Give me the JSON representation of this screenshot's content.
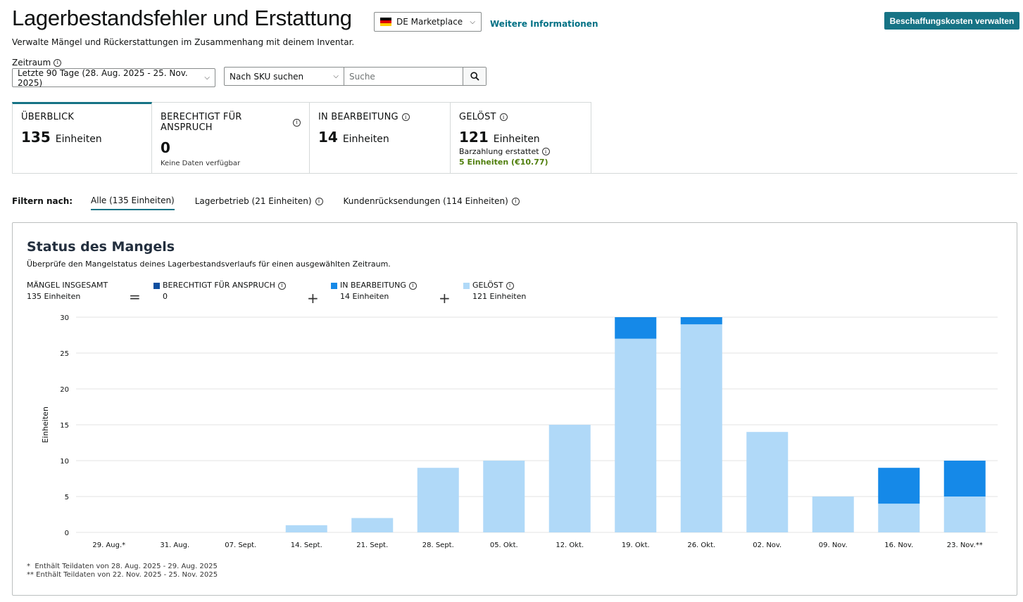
{
  "header": {
    "title": "Lagerbestandsfehler und Erstattung",
    "marketplace": {
      "label": "DE Marketplace",
      "flag_colors": [
        "#000000",
        "#dd0000",
        "#ffce00"
      ]
    },
    "more_info_link": "Weitere Informationen",
    "primary_button": "Beschaffungskosten verwalten",
    "subtitle": "Verwalte Mängel und Rückerstattungen im Zusammenhang mit deinem Inventar."
  },
  "filters_bar": {
    "period_label": "Zeitraum",
    "period_value": "Letzte 90 Tage (28. Aug. 2025 - 25. Nov. 2025)",
    "search_type": "Nach SKU suchen",
    "search_placeholder": "Suche",
    "search_value": ""
  },
  "cards": [
    {
      "title": "ÜBERBLICK",
      "value": "135",
      "unit": "Einheiten",
      "active": true
    },
    {
      "title": "BERECHTIGT FÜR ANSPRUCH",
      "value": "0",
      "note": "Keine Daten verfügbar"
    },
    {
      "title": "IN BEARBEITUNG",
      "value": "14",
      "unit": "Einheiten"
    },
    {
      "title": "GELÖST",
      "value": "121",
      "unit": "Einheiten",
      "sub_label": "Barzahlung erstattet",
      "sub_value": "5 Einheiten (€10.77)"
    }
  ],
  "filter_tabs": {
    "label": "Filtern nach:",
    "options": [
      {
        "label": "Alle (135 Einheiten)",
        "active": true
      },
      {
        "label": "Lagerbetrieb (21 Einheiten)"
      },
      {
        "label": "Kundenrücksendungen (114 Einheiten)"
      }
    ]
  },
  "panel": {
    "title": "Status des Mangels",
    "description": "Überprüfe den Mangelstatus deines Lagerbestandsverlaufs für einen ausgewählten Zeitraum.",
    "summary": {
      "total_label": "MÄNGEL INSGESAMT",
      "total_value": "135 Einheiten",
      "equals": "=",
      "plus": "+",
      "items": [
        {
          "label": "BERECHTIGT FÜR ANSPRUCH",
          "value": "0",
          "color": "#0f4fa0"
        },
        {
          "label": "IN BEARBEITUNG",
          "value": "14 Einheiten",
          "color": "#1589e8"
        },
        {
          "label": "GELÖST",
          "value": "121 Einheiten",
          "color": "#b0d9f8"
        }
      ]
    },
    "footnotes": [
      "*  Enthält Teildaten von 28. Aug. 2025 - 29. Aug. 2025",
      "** Enthält Teildaten von 22. Nov. 2025 - 25. Nov. 2025"
    ]
  },
  "chart_data": {
    "type": "bar",
    "stacked": true,
    "title": "Status des Mangels",
    "xlabel": "",
    "ylabel": "Einheiten",
    "ylim": [
      0,
      30
    ],
    "yticks": [
      0,
      5,
      10,
      15,
      20,
      25,
      30
    ],
    "grid": true,
    "categories": [
      "29. Aug.*",
      "31. Aug.",
      "07. Sept.",
      "14. Sept.",
      "21. Sept.",
      "28. Sept.",
      "05. Okt.",
      "12. Okt.",
      "19. Okt.",
      "26. Okt.",
      "02. Nov.",
      "09. Nov.",
      "16. Nov.",
      "23. Nov.**"
    ],
    "series": [
      {
        "name": "GELÖST",
        "color": "#b0d9f8",
        "values": [
          0,
          0,
          0,
          1,
          2,
          9,
          10,
          15,
          27,
          29,
          14,
          5,
          4,
          5
        ]
      },
      {
        "name": "IN BEARBEITUNG",
        "color": "#1589e8",
        "values": [
          0,
          0,
          0,
          0,
          0,
          0,
          0,
          0,
          3,
          1,
          0,
          0,
          5,
          5
        ]
      },
      {
        "name": "BERECHTIGT FÜR ANSPRUCH",
        "color": "#0f4fa0",
        "values": [
          0,
          0,
          0,
          0,
          0,
          0,
          0,
          0,
          0,
          0,
          0,
          0,
          0,
          0
        ]
      }
    ]
  }
}
